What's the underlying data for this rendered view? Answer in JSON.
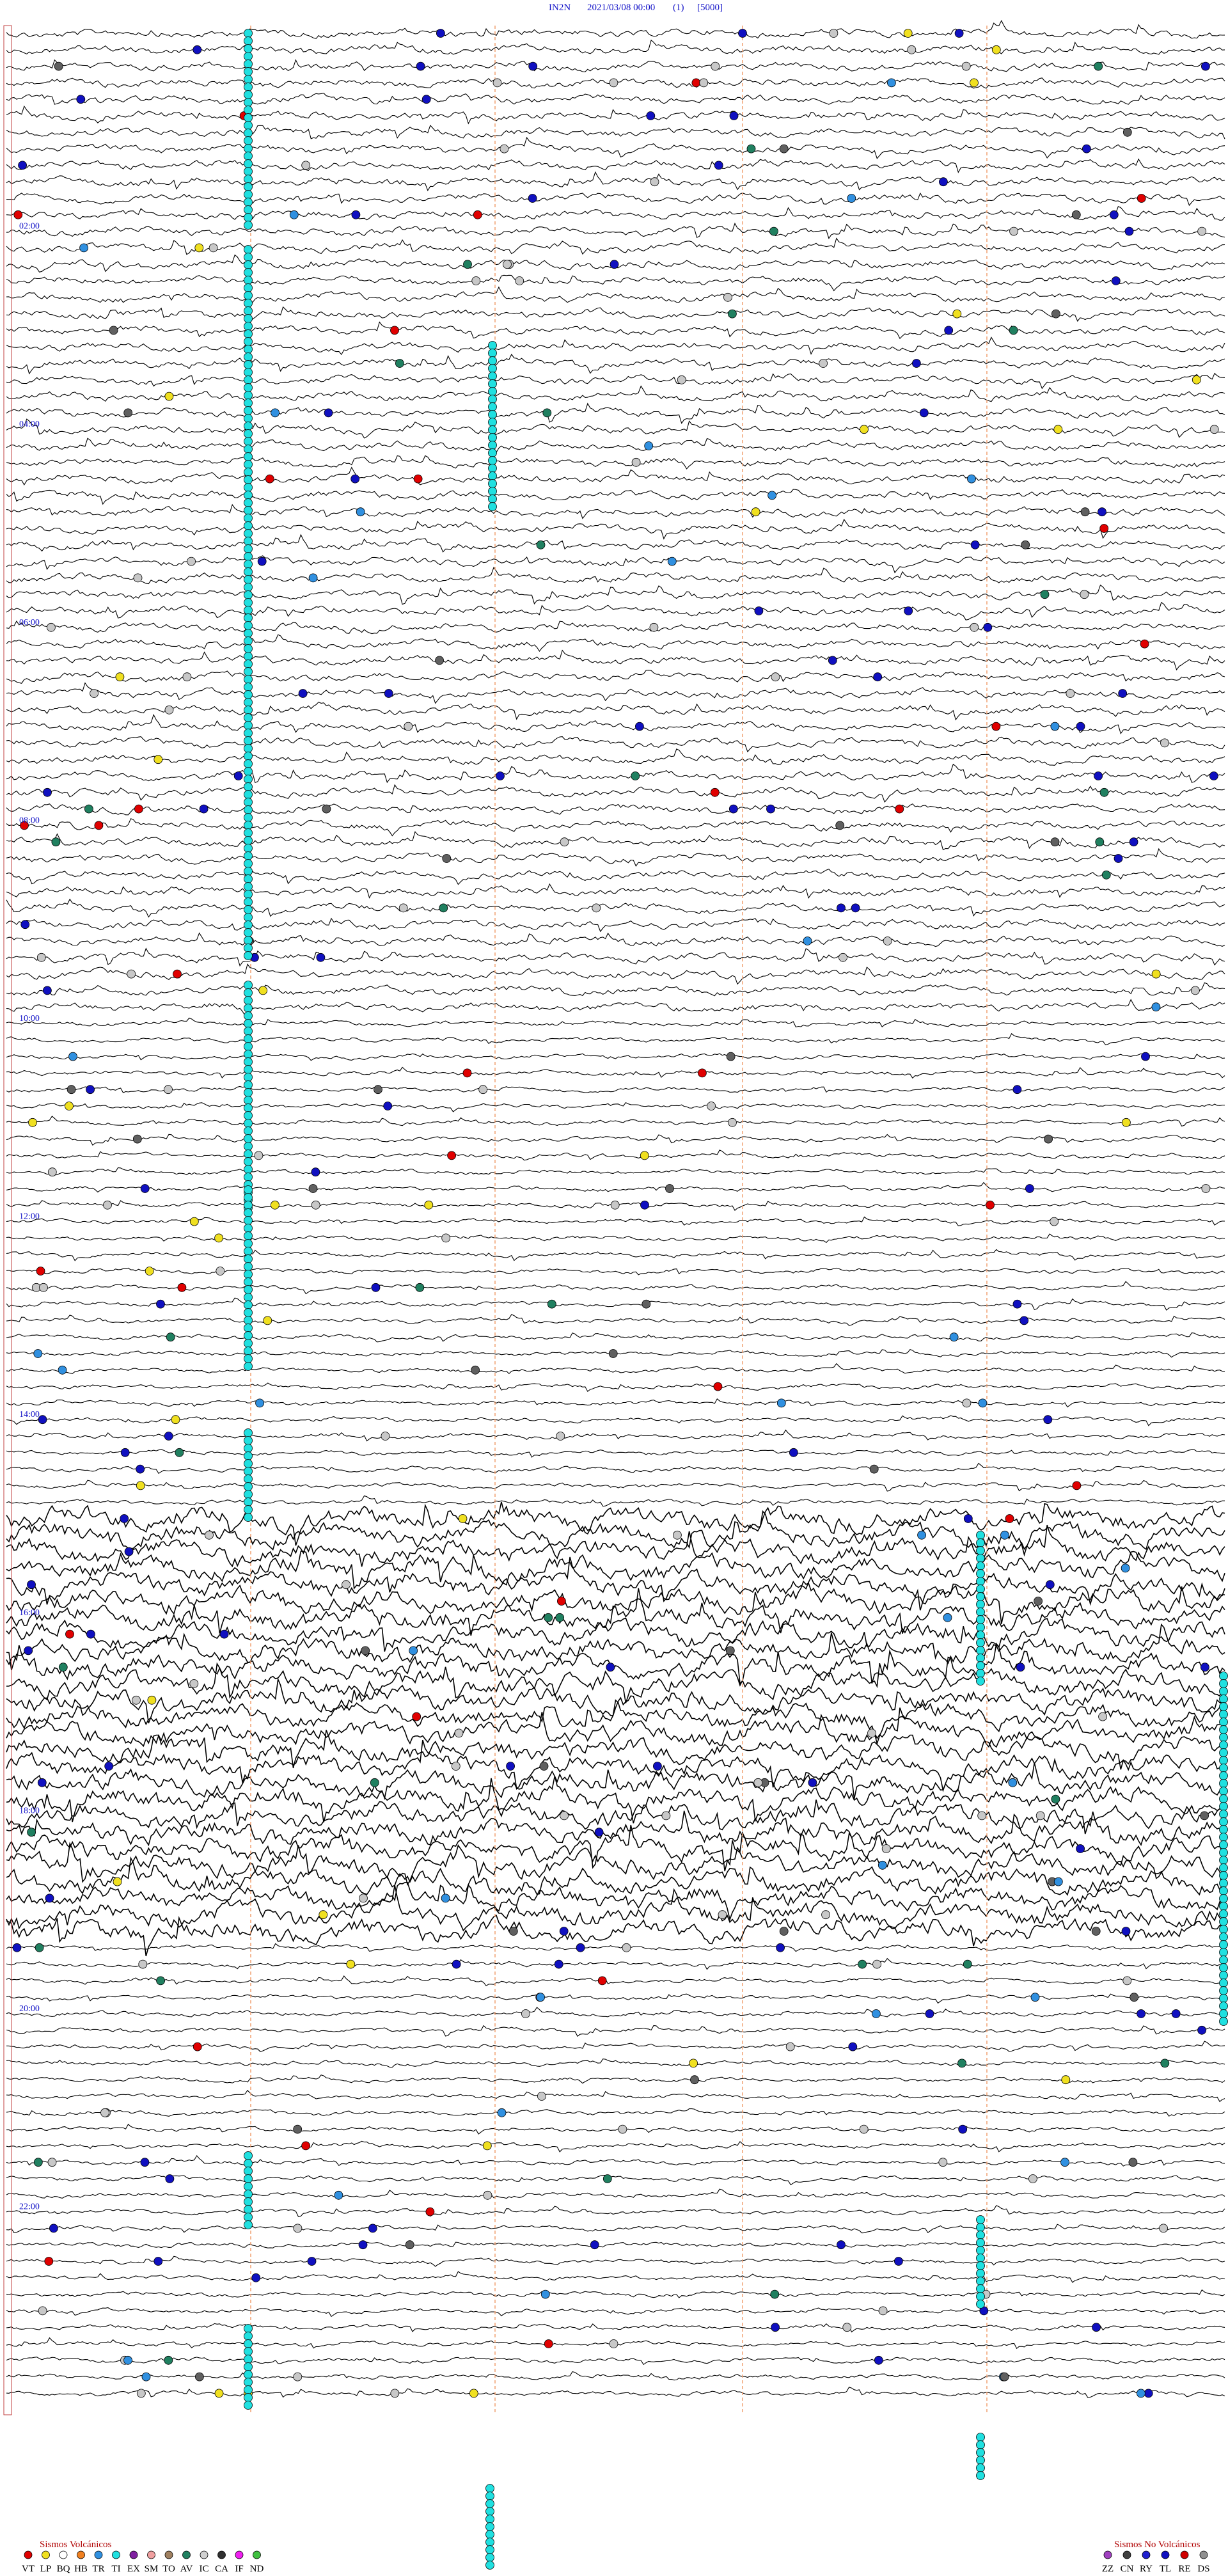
{
  "header": {
    "station": "IN2N",
    "datetime": "2021/03/08 00:00",
    "channel": "(1)",
    "scale": "[5000]"
  },
  "time_labels": [
    "02:00",
    "04:00",
    "06:00",
    "08:00",
    "10:00",
    "12:00",
    "14:00",
    "16:00",
    "18:00",
    "20:00",
    "22:00"
  ],
  "legend_volcanic": {
    "title": "Sismos Volcánicos",
    "items": [
      {
        "code": "VT",
        "color": "#e00000"
      },
      {
        "code": "LP",
        "color": "#f0e020"
      },
      {
        "code": "BQ",
        "color": "#ffffff"
      },
      {
        "code": "HB",
        "color": "#f08020"
      },
      {
        "code": "TR",
        "color": "#3090e0"
      },
      {
        "code": "TI",
        "color": "#20e0e0"
      },
      {
        "code": "EX",
        "color": "#8020a0"
      },
      {
        "code": "SM",
        "color": "#f0a0a0"
      },
      {
        "code": "TO",
        "color": "#a08060"
      },
      {
        "code": "AV",
        "color": "#208060"
      },
      {
        "code": "IC",
        "color": "#d0d0d0"
      },
      {
        "code": "CA",
        "color": "#303030"
      },
      {
        "code": "IF",
        "color": "#f020f0"
      },
      {
        "code": "ND",
        "color": "#40c040"
      }
    ]
  },
  "legend_non_volcanic": {
    "title": "Sismos No Volcánicos",
    "items": [
      {
        "code": "ZZ",
        "color": "#a040c0"
      },
      {
        "code": "CN",
        "color": "#404040"
      },
      {
        "code": "RY",
        "color": "#2020d0"
      },
      {
        "code": "TL",
        "color": "#1010c0"
      },
      {
        "code": "RE",
        "color": "#d00000"
      },
      {
        "code": "DS",
        "color": "#909090"
      }
    ]
  }
}
